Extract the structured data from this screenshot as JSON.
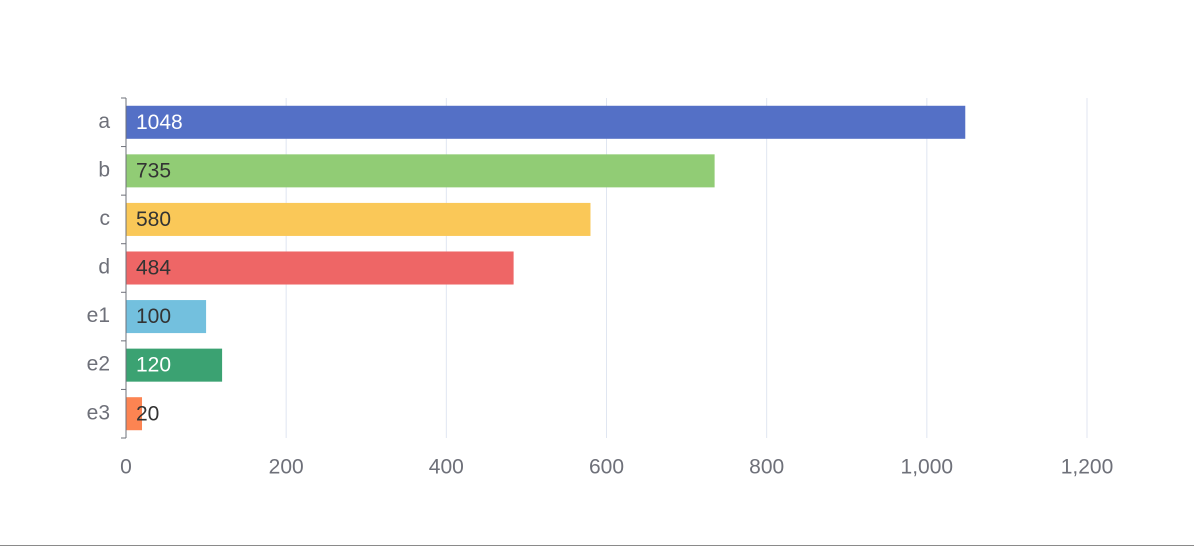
{
  "chart_data": {
    "type": "bar",
    "orientation": "horizontal",
    "categories": [
      "a",
      "b",
      "c",
      "d",
      "e1",
      "e2",
      "e3"
    ],
    "values": [
      1048,
      735,
      580,
      484,
      100,
      120,
      20
    ],
    "data_labels": [
      "1048",
      "735",
      "580",
      "484",
      "100",
      "120",
      "20"
    ],
    "colors": [
      "#5470c6",
      "#91cc75",
      "#fac858",
      "#ee6666",
      "#73c0de",
      "#3ba272",
      "#fc8452"
    ],
    "label_colors": [
      "#ffffff",
      "#333333",
      "#333333",
      "#333333",
      "#333333",
      "#ffffff",
      "#333333"
    ],
    "x_ticks": [
      0,
      200,
      400,
      600,
      800,
      1000,
      1200
    ],
    "x_tick_labels": [
      "0",
      "200",
      "400",
      "600",
      "800",
      "1,000",
      "1,200"
    ],
    "xlim": [
      0,
      1200
    ],
    "grid": true,
    "title": "",
    "xlabel": "",
    "ylabel": ""
  }
}
